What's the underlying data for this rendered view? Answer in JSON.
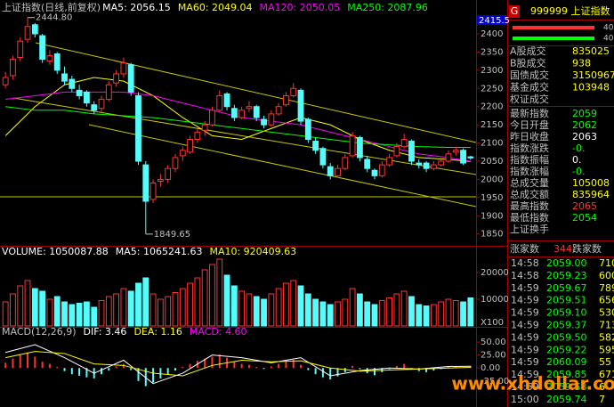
{
  "chart_data": [
    {
      "type": "candlestick",
      "title": "上证指数(日线,前复权)",
      "legend": [
        {
          "text": "MA5: 2056.15",
          "color": "#ffffff"
        },
        {
          "text": "MA60: 2049.04",
          "color": "#ffff00"
        },
        {
          "text": "MA120: 2050.05",
          "color": "#ff00ff"
        },
        {
          "text": "MA250: 2087.96",
          "color": "#00ff00"
        }
      ],
      "ylim": [
        1820,
        2493
      ],
      "yticks": [
        1850,
        1900,
        1950,
        2000,
        2050,
        2100,
        2150,
        2200,
        2250,
        2300,
        2350,
        2400
      ],
      "up_color": "#ff3232",
      "down_color": "#54fcfc",
      "candles": [
        [
          2260,
          2295,
          2250,
          2280
        ],
        [
          2285,
          2340,
          2275,
          2330
        ],
        [
          2335,
          2390,
          2325,
          2380
        ],
        [
          2385,
          2444.8,
          2375,
          2420
        ],
        [
          2425,
          2430,
          2390,
          2400
        ],
        [
          2395,
          2400,
          2320,
          2330
        ],
        [
          2325,
          2355,
          2315,
          2340
        ],
        [
          2345,
          2350,
          2290,
          2300
        ],
        [
          2290,
          2310,
          2260,
          2270
        ],
        [
          2275,
          2285,
          2240,
          2250
        ],
        [
          2245,
          2260,
          2220,
          2230
        ],
        [
          2240,
          2245,
          2200,
          2210
        ],
        [
          2205,
          2215,
          2180,
          2190
        ],
        [
          2195,
          2230,
          2185,
          2220
        ],
        [
          2220,
          2270,
          2215,
          2260
        ],
        [
          2265,
          2300,
          2255,
          2290
        ],
        [
          2290,
          2335,
          2280,
          2320
        ],
        [
          2315,
          2320,
          2230,
          2240
        ],
        [
          2230,
          2240,
          2040,
          2050
        ],
        [
          2040,
          2050,
          1849.65,
          1940
        ],
        [
          1945,
          2000,
          1935,
          1990
        ],
        [
          1995,
          2015,
          1980,
          2000
        ],
        [
          2000,
          2040,
          1990,
          2030
        ],
        [
          2030,
          2070,
          2020,
          2060
        ],
        [
          2065,
          2090,
          2050,
          2080
        ],
        [
          2075,
          2120,
          2070,
          2110
        ],
        [
          2110,
          2140,
          2100,
          2130
        ],
        [
          2135,
          2160,
          2120,
          2150
        ],
        [
          2150,
          2200,
          2145,
          2190
        ],
        [
          2190,
          2245,
          2185,
          2230
        ],
        [
          2235,
          2240,
          2190,
          2200
        ],
        [
          2195,
          2205,
          2160,
          2170
        ],
        [
          2170,
          2200,
          2165,
          2190
        ],
        [
          2195,
          2215,
          2185,
          2200
        ],
        [
          2200,
          2205,
          2160,
          2170
        ],
        [
          2165,
          2175,
          2140,
          2150
        ],
        [
          2150,
          2190,
          2145,
          2180
        ],
        [
          2180,
          2210,
          2175,
          2200
        ],
        [
          2205,
          2240,
          2200,
          2230
        ],
        [
          2230,
          2265,
          2225,
          2250
        ],
        [
          2245,
          2250,
          2150,
          2160
        ],
        [
          2165,
          2170,
          2100,
          2110
        ],
        [
          2105,
          2115,
          2070,
          2080
        ],
        [
          2085,
          2090,
          2030,
          2040
        ],
        [
          2035,
          2045,
          2000,
          2010
        ],
        [
          2010,
          2040,
          2005,
          2030
        ],
        [
          2030,
          2070,
          2025,
          2060
        ],
        [
          2065,
          2130,
          2060,
          2120
        ],
        [
          2115,
          2120,
          2050,
          2060
        ],
        [
          2055,
          2065,
          2020,
          2030
        ],
        [
          2025,
          2030,
          2000,
          2010
        ],
        [
          2010,
          2050,
          2005,
          2040
        ],
        [
          2040,
          2070,
          2035,
          2060
        ],
        [
          2065,
          2100,
          2060,
          2090
        ],
        [
          2090,
          2125,
          2085,
          2110
        ],
        [
          2105,
          2110,
          2040,
          2050
        ],
        [
          2045,
          2055,
          2030,
          2040
        ],
        [
          2045,
          2050,
          2020,
          2030
        ],
        [
          2030,
          2050,
          2025,
          2040
        ],
        [
          2040,
          2060,
          2035,
          2050
        ],
        [
          2050,
          2080,
          2045,
          2070
        ],
        [
          2075,
          2090,
          2065,
          2080
        ],
        [
          2080,
          2085,
          2040,
          2045
        ],
        [
          2062,
          2065,
          2054,
          2059
        ]
      ],
      "series": [
        {
          "color": "#ffff00",
          "x": [
            0,
            4,
            8,
            12,
            16,
            20,
            24,
            28,
            32,
            36,
            40,
            44,
            48,
            52,
            56,
            60,
            63
          ],
          "values": [
            2120,
            2200,
            2260,
            2280,
            2270,
            2230,
            2170,
            2120,
            2110,
            2140,
            2170,
            2150,
            2110,
            2080,
            2060,
            2055,
            2049
          ]
        },
        {
          "color": "#ff00ff",
          "x": [
            0,
            4,
            8,
            12,
            16,
            20,
            24,
            28,
            32,
            36,
            40,
            44,
            48,
            52,
            56,
            60,
            63
          ],
          "values": [
            2220,
            2230,
            2240,
            2240,
            2240,
            2230,
            2210,
            2190,
            2170,
            2160,
            2150,
            2130,
            2110,
            2090,
            2070,
            2060,
            2050
          ]
        },
        {
          "color": "#00ff00",
          "x": [
            0,
            4,
            8,
            12,
            16,
            20,
            24,
            28,
            32,
            36,
            40,
            44,
            48,
            52,
            56,
            60,
            63
          ],
          "values": [
            2200,
            2190,
            2190,
            2180,
            2175,
            2170,
            2160,
            2150,
            2140,
            2130,
            2120,
            2110,
            2100,
            2095,
            2090,
            2088,
            2088
          ]
        }
      ],
      "annotations": [
        {
          "x": 3,
          "value": 2444.8,
          "label": "2444.80"
        },
        {
          "x": 19,
          "value": 1849.65,
          "label": "1849.65"
        }
      ],
      "cursor_label": "2415.5"
    },
    {
      "type": "bar",
      "legend": [
        {
          "text": "VOLUME: 1050087.88",
          "color": "#ffffff"
        },
        {
          "text": "MA5: 1065241.63",
          "color": "#ffffff"
        },
        {
          "text": "MA10: 920409.63",
          "color": "#ffff00"
        }
      ],
      "ylim": [
        0,
        29000
      ],
      "yticks": [
        10000,
        20000
      ],
      "unit_label": "X100",
      "values": [
        9000,
        12000,
        15000,
        17000,
        14000,
        13000,
        10000,
        11000,
        9000,
        8000,
        8500,
        9000,
        7000,
        9500,
        11000,
        12000,
        14000,
        13000,
        16000,
        18000,
        12000,
        10000,
        11000,
        12500,
        14000,
        16000,
        18000,
        21000,
        23000,
        25000,
        19000,
        15000,
        13000,
        12000,
        11000,
        10000,
        12000,
        14000,
        16000,
        17000,
        15000,
        12000,
        10000,
        9000,
        8000,
        9000,
        10000,
        14000,
        12000,
        9000,
        8000,
        9500,
        10500,
        12000,
        13000,
        11000,
        8000,
        7500,
        8000,
        9000,
        10000,
        9500,
        9000,
        10500
      ]
    },
    {
      "type": "macd",
      "legend": [
        {
          "text": "MACD(12,26,9)",
          "color": "#c0c0c0"
        },
        {
          "text": "DIF: 3.46",
          "color": "#ffffff"
        },
        {
          "text": "DEA: 1.16",
          "color": "#ffff00"
        },
        {
          "text": "MACD: 4.60",
          "color": "#ff00ff"
        }
      ],
      "ylim": [
        -46,
        76
      ],
      "yticks": [
        {
          "value": -25,
          "label": "-25.00"
        },
        {
          "value": 0,
          "label": "0.00"
        },
        {
          "value": 25,
          "label": "25.00"
        },
        {
          "value": 50,
          "label": "50.00"
        }
      ],
      "values": [
        10,
        18,
        25,
        30,
        22,
        12,
        8,
        2,
        -6,
        -12,
        -15,
        -18,
        -20,
        -12,
        -5,
        3,
        8,
        -4,
        -25,
        -35,
        -28,
        -20,
        -12,
        -5,
        2,
        8,
        14,
        18,
        22,
        26,
        20,
        12,
        8,
        6,
        2,
        -2,
        3,
        8,
        12,
        16,
        6,
        -4,
        -12,
        -18,
        -22,
        -16,
        -8,
        4,
        -2,
        -10,
        -14,
        -8,
        -2,
        4,
        8,
        -2,
        -6,
        -8,
        -5,
        -2,
        2,
        4,
        1,
        4.6
      ],
      "lines": [
        {
          "color": "#ffffff",
          "x": [
            0,
            4,
            8,
            12,
            16,
            20,
            24,
            28,
            32,
            36,
            40,
            44,
            48,
            52,
            56,
            60,
            63
          ],
          "values": [
            30,
            45,
            20,
            -10,
            15,
            -30,
            -10,
            25,
            20,
            10,
            20,
            -15,
            -5,
            0,
            -2,
            3,
            3.46
          ]
        },
        {
          "color": "#ffff00",
          "x": [
            0,
            4,
            8,
            12,
            16,
            20,
            24,
            28,
            32,
            36,
            40,
            44,
            48,
            52,
            56,
            60,
            63
          ],
          "values": [
            20,
            32,
            28,
            8,
            5,
            -10,
            -15,
            5,
            15,
            12,
            14,
            0,
            -6,
            -4,
            -2,
            0,
            1.16
          ]
        }
      ]
    }
  ],
  "quote_panel": {
    "badge": "G",
    "code_name": "999999 上证指数",
    "bars": [
      {
        "value": 40,
        "color": "#ff3232"
      },
      {
        "value": 40,
        "color": "#00ff00"
      }
    ],
    "stats1": [
      {
        "label": "A股成交",
        "value": "835025",
        "color": "#ffff00"
      },
      {
        "label": "B股成交",
        "value": "938",
        "color": "#ffff00"
      },
      {
        "label": "国债成交",
        "value": "3150967",
        "color": "#ffff00"
      },
      {
        "label": "基金成交",
        "value": "103948",
        "color": "#ffff00"
      },
      {
        "label": "权证成交"
      }
    ],
    "stats2": [
      {
        "label": "最新指数",
        "value": "2059",
        "color": "#00ff00"
      },
      {
        "label": "今日开盘",
        "value": "2062",
        "color": "#00ff00"
      },
      {
        "label": "昨日收盘",
        "value": "2063",
        "color": "#ffffff"
      },
      {
        "label": "指数涨跌",
        "value": "-0.",
        "color": "#00ff00"
      },
      {
        "label": "指数振幅",
        "value": "0.",
        "color": "#ffffff"
      },
      {
        "label": "指数涨幅",
        "value": "-0.",
        "color": "#00ff00"
      },
      {
        "label": "总成交量",
        "value": "105008",
        "color": "#ffff00"
      },
      {
        "label": "总成交额",
        "value": "835964",
        "color": "#ffff00"
      },
      {
        "label": "最高指数",
        "value": "2065",
        "color": "#ff3232"
      },
      {
        "label": "最低指数",
        "value": "2054",
        "color": "#00ff00"
      },
      {
        "label": "上证换手"
      }
    ],
    "breadth": {
      "up_label": "涨家数",
      "up_count": 344,
      "down_label": "跌家数"
    },
    "ticks": [
      [
        "14:58",
        "2059.00",
        "710"
      ],
      [
        "14:58",
        "2059.23",
        "600"
      ],
      [
        "14:59",
        "2059.67",
        "789"
      ],
      [
        "14:59",
        "2059.51",
        "656"
      ],
      [
        "14:59",
        "2059.10",
        "530"
      ],
      [
        "14:59",
        "2059.37",
        "713"
      ],
      [
        "14:59",
        "2059.50",
        "582"
      ],
      [
        "14:59",
        "2059.22",
        "595"
      ],
      [
        "14:59",
        "2060.09",
        "55"
      ],
      [
        "14:59",
        "2059.85",
        "671"
      ],
      [
        "14:59",
        "2059.58",
        "6"
      ],
      [
        "15:00",
        "2059.74",
        "7"
      ]
    ]
  },
  "watermark": "www.xhdollar.com"
}
